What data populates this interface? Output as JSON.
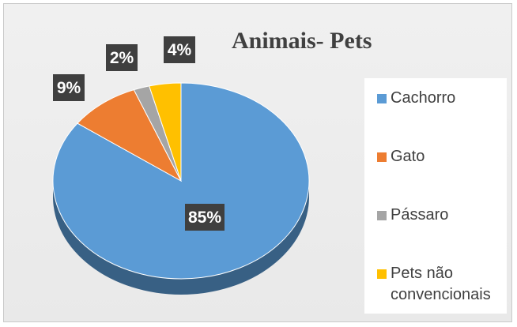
{
  "chart_data": {
    "type": "pie",
    "title": "Animais- Pets",
    "categories": [
      "Cachorro",
      "Gato",
      "Pássaro",
      "Pets não convencionais"
    ],
    "values": [
      85,
      9,
      2,
      4
    ],
    "data_labels": [
      "85%",
      "9%",
      "2%",
      "4%"
    ],
    "colors": [
      "#5b9bd5",
      "#ed7d31",
      "#a5a5a5",
      "#ffc000"
    ],
    "legend_position": "right",
    "style": "3d"
  },
  "legend": {
    "items": [
      {
        "label": "Cachorro",
        "color": "#5b9bd5"
      },
      {
        "label": "Gato",
        "color": "#ed7d31"
      },
      {
        "label": "Pássaro",
        "color": "#a5a5a5"
      },
      {
        "label": "Pets não convencionais",
        "color": "#ffc000"
      }
    ]
  }
}
